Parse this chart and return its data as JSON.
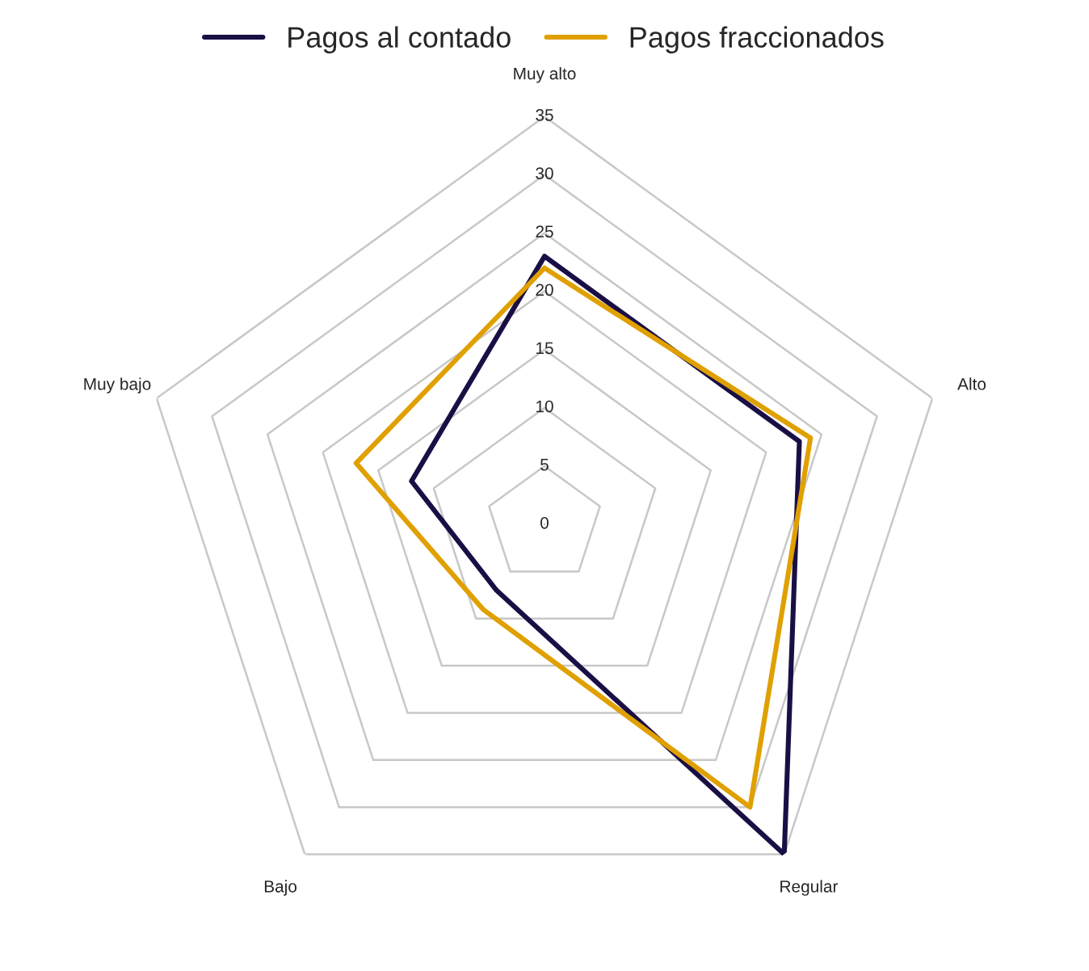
{
  "chart_data": {
    "type": "radar",
    "categories": [
      "Muy alto",
      "Alto",
      "Regular",
      "Bajo",
      "Muy bajo"
    ],
    "series": [
      {
        "name": "Pagos al contado",
        "color": "#1a0f45",
        "values": [
          23,
          23,
          35,
          7,
          12
        ]
      },
      {
        "name": "Pagos fraccionados",
        "color": "#e0a000",
        "values": [
          22,
          24,
          30,
          9,
          17
        ]
      }
    ],
    "ylim": [
      0,
      35
    ],
    "yticks": [
      0,
      5,
      10,
      15,
      20,
      25,
      30,
      35
    ],
    "grid": true,
    "legend": "top",
    "marker": "none",
    "line_style": "solid"
  }
}
